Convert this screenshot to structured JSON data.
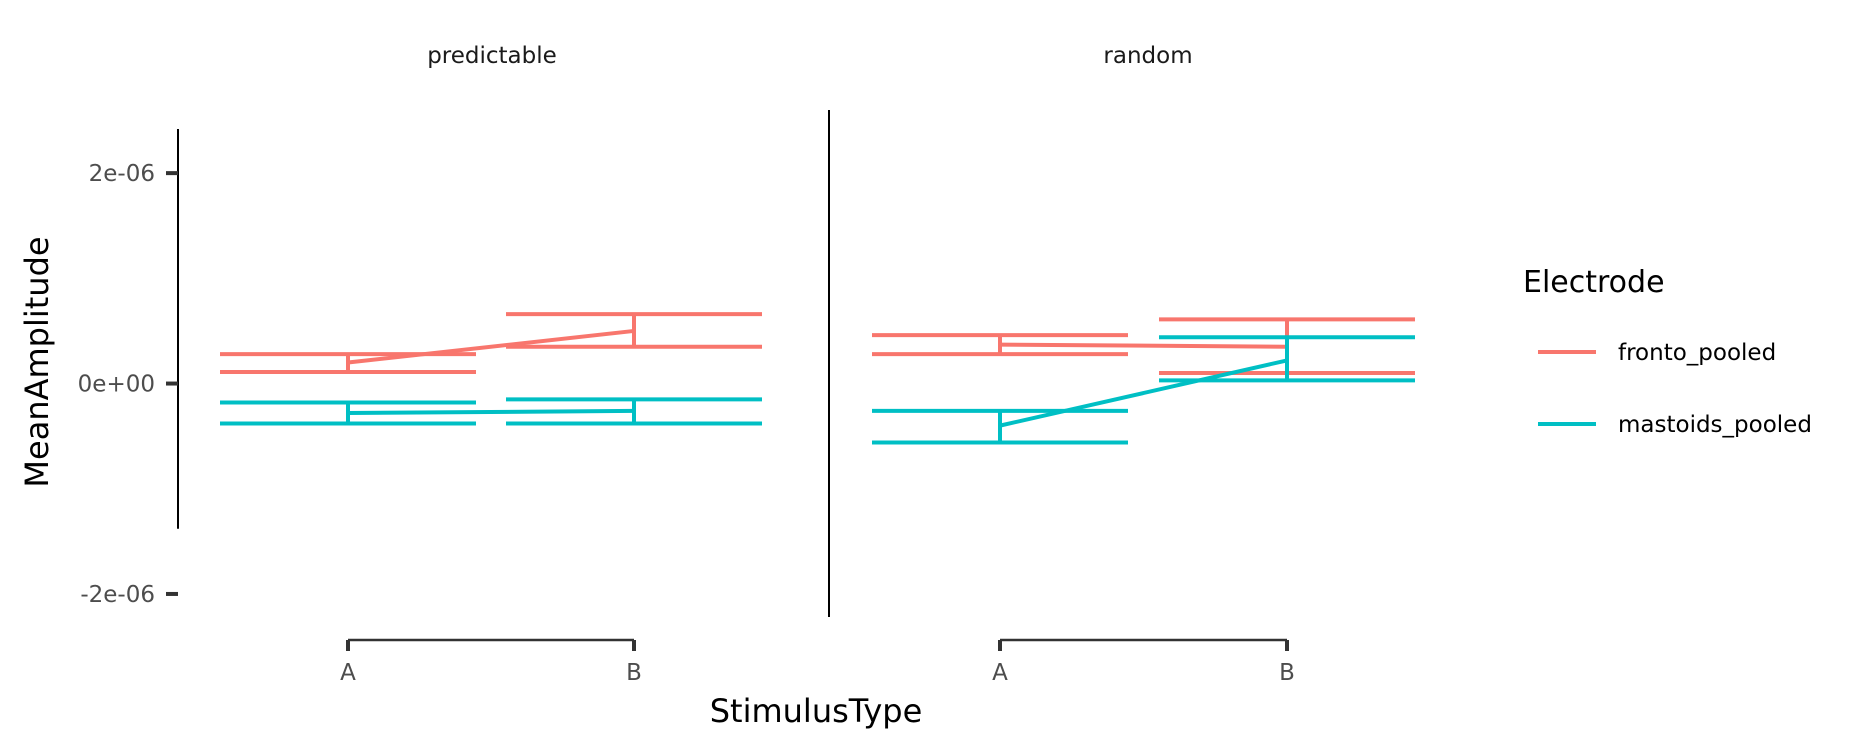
{
  "chart_data": {
    "type": "line",
    "title": "",
    "xlabel": "StimulusType",
    "ylabel": "MeanAmplitude",
    "categories": [
      "A",
      "B"
    ],
    "ylim": [
      -2.2e-06,
      2.6e-06
    ],
    "y_ticks": [
      {
        "value": 2e-06,
        "label": "2e-06"
      },
      {
        "value": 0,
        "label": "0e+00"
      },
      {
        "value": -2e-06,
        "label": "-2e-06"
      }
    ],
    "y_axis_line_range": [
      -1.38e-06,
      2.42e-06
    ],
    "grid": false,
    "legend_position": "right",
    "legend_title": "Electrode",
    "facets": [
      {
        "label": "predictable",
        "series": [
          {
            "name": "fronto_pooled",
            "color": "#F8766D",
            "values": [
              2e-07,
              5e-07
            ],
            "error_low": [
              1.1e-07,
              3.5e-07
            ],
            "error_high": [
              2.8e-07,
              6.6e-07
            ]
          },
          {
            "name": "mastoids_pooled",
            "color": "#00BFC4",
            "values": [
              -2.8e-07,
              -2.6e-07
            ],
            "error_low": [
              -3.8e-07,
              -3.8e-07
            ],
            "error_high": [
              -1.8e-07,
              -1.5e-07
            ]
          }
        ]
      },
      {
        "label": "random",
        "series": [
          {
            "name": "fronto_pooled",
            "color": "#F8766D",
            "values": [
              3.7e-07,
              3.5e-07
            ],
            "error_low": [
              2.8e-07,
              1e-07
            ],
            "error_high": [
              4.6e-07,
              6.1e-07
            ]
          },
          {
            "name": "mastoids_pooled",
            "color": "#00BFC4",
            "values": [
              -4e-07,
              2.2e-07
            ],
            "error_low": [
              -5.6e-07,
              3e-08
            ],
            "error_high": [
              -2.6e-07,
              4.4e-07
            ]
          }
        ]
      }
    ]
  }
}
